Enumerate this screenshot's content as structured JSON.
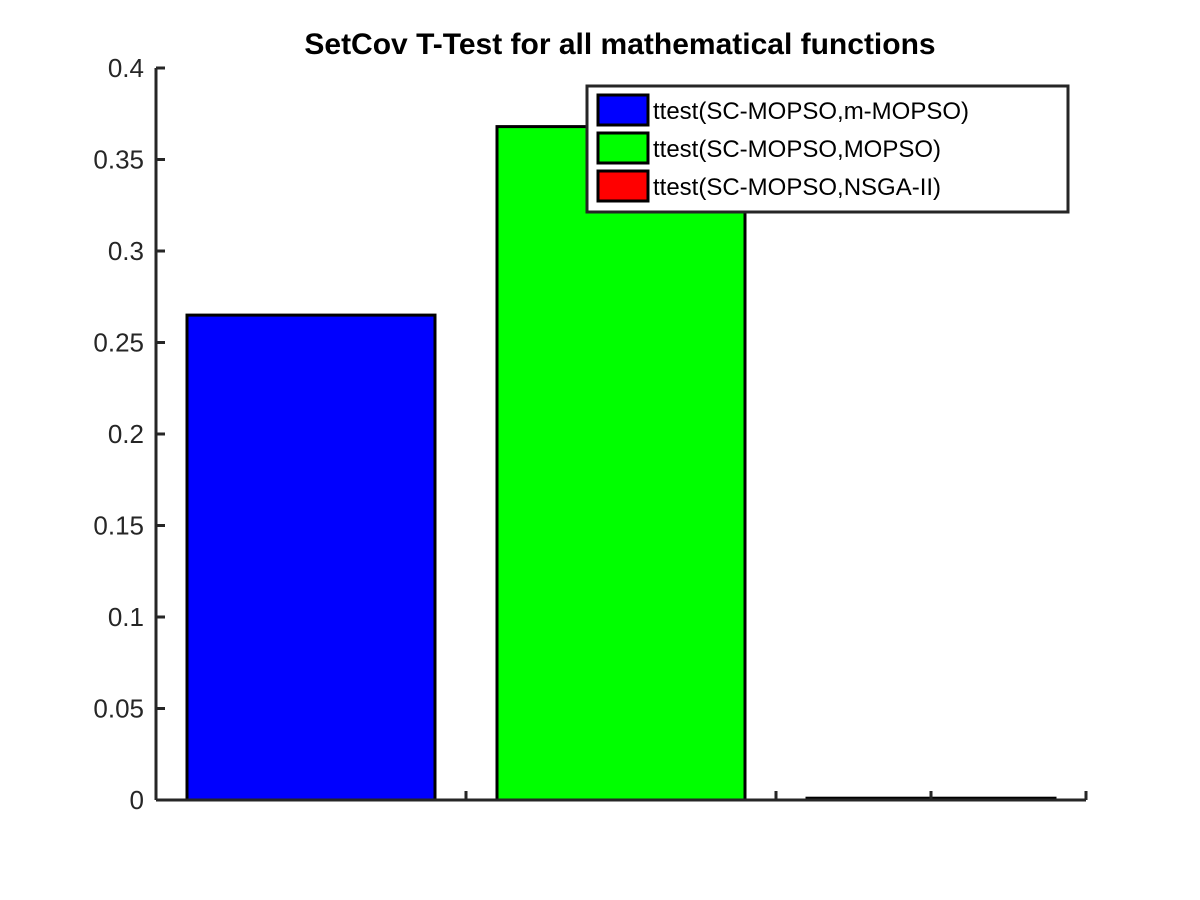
{
  "chart_data": {
    "type": "bar",
    "title": "SetCov T-Test for all mathematical functions",
    "xlabel": "",
    "ylabel": "",
    "ylim": [
      0,
      0.4
    ],
    "yticks": [
      0,
      0.05,
      0.1,
      0.15,
      0.2,
      0.25,
      0.3,
      0.35,
      0.4
    ],
    "ytick_labels": [
      "0",
      "0.05",
      "0.1",
      "0.15",
      "0.2",
      "0.25",
      "0.3",
      "0.35",
      "0.4"
    ],
    "grid": false,
    "legend_position": "top-right",
    "series": [
      {
        "name": "ttest(SC-MOPSO,m-MOPSO)",
        "value": 0.265,
        "color": "#0000ff"
      },
      {
        "name": "ttest(SC-MOPSO,MOPSO)",
        "value": 0.368,
        "color": "#00ff00"
      },
      {
        "name": "ttest(SC-MOPSO,NSGA-II)",
        "value": 0.001,
        "color": "#ff0000"
      }
    ]
  }
}
